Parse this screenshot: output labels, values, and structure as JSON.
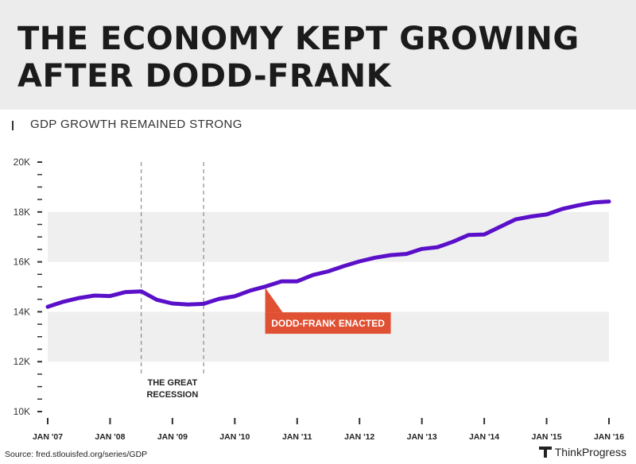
{
  "header": {
    "title": "THE ECONOMY KEPT GROWING AFTER DODD-FRANK",
    "subtitle": "GDP GROWTH REMAINED STRONG"
  },
  "chart_data": {
    "type": "line",
    "title": "THE ECONOMY KEPT GROWING AFTER DODD-FRANK",
    "subtitle": "GDP GROWTH REMAINED STRONG",
    "xlabel": "",
    "ylabel": "",
    "ylim": [
      10000,
      20000
    ],
    "xlim": [
      2007,
      2016
    ],
    "y_ticks": [
      10000,
      12000,
      14000,
      16000,
      18000,
      20000
    ],
    "y_tick_labels": [
      "10K",
      "12K",
      "14K",
      "16K",
      "18K",
      "20K"
    ],
    "x_ticks": [
      2007,
      2008,
      2009,
      2010,
      2011,
      2012,
      2013,
      2014,
      2015,
      2016
    ],
    "x_tick_labels": [
      "JAN '07",
      "JAN '08",
      "JAN '09",
      "JAN '10",
      "JAN '11",
      "JAN '12",
      "JAN '13",
      "JAN '14",
      "JAN '15",
      "JAN '16"
    ],
    "series": [
      {
        "name": "GDP",
        "color": "#5a0fc8",
        "x": [
          2007.0,
          2007.25,
          2007.5,
          2007.75,
          2008.0,
          2008.25,
          2008.5,
          2008.75,
          2009.0,
          2009.25,
          2009.5,
          2009.75,
          2010.0,
          2010.25,
          2010.5,
          2010.75,
          2011.0,
          2011.25,
          2011.5,
          2011.75,
          2012.0,
          2012.25,
          2012.5,
          2012.75,
          2013.0,
          2013.25,
          2013.5,
          2013.75,
          2014.0,
          2014.25,
          2014.5,
          2014.75,
          2015.0,
          2015.25,
          2015.5,
          2015.75,
          2016.0
        ],
        "values": [
          14200,
          14400,
          14550,
          14650,
          14630,
          14790,
          14820,
          14480,
          14330,
          14290,
          14320,
          14520,
          14620,
          14850,
          15020,
          15220,
          15220,
          15470,
          15620,
          15830,
          16020,
          16170,
          16270,
          16320,
          16520,
          16590,
          16810,
          17080,
          17100,
          17400,
          17700,
          17820,
          17900,
          18120,
          18260,
          18380,
          18420
        ]
      }
    ],
    "shaded_bands": [
      {
        "from": 12000,
        "to": 14000,
        "color": "#efefef"
      },
      {
        "from": 16000,
        "to": 18000,
        "color": "#efefef"
      }
    ],
    "recession": {
      "start": 2008.5,
      "end": 2009.5,
      "label_line1": "THE GREAT",
      "label_line2": "RECESSION"
    },
    "annotation": {
      "x": 2010.5,
      "y": 15220,
      "label": "DODD-FRANK ENACTED",
      "color": "#e05033"
    },
    "grid": false
  },
  "footer": {
    "source": "Source: fred.stlouisfed.org/series/GDP",
    "brand": "ThinkProgress"
  }
}
